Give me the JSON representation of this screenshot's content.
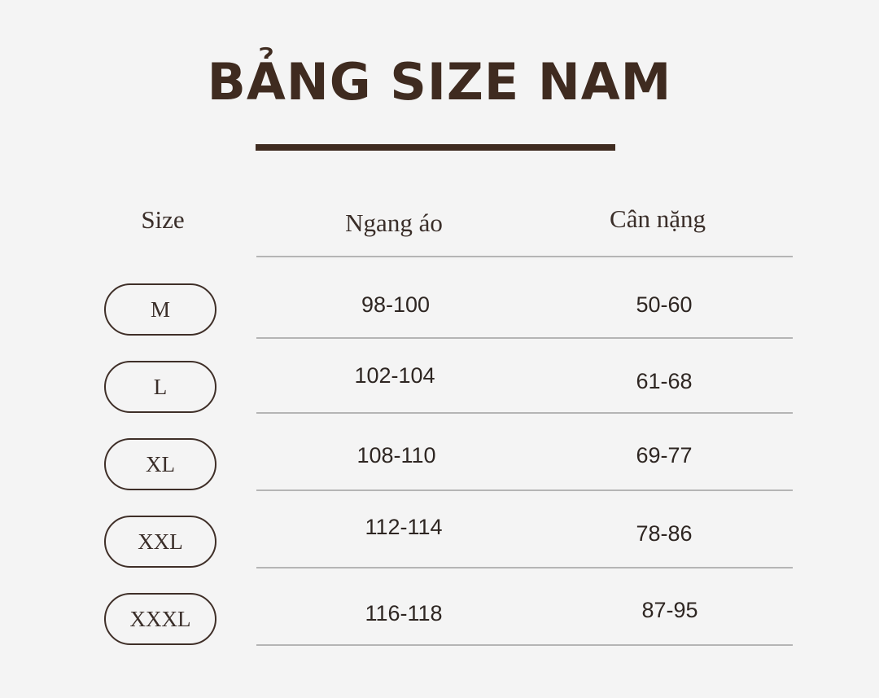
{
  "title": "BẢNG SIZE NAM",
  "headers": {
    "size": "Size",
    "chest": "Ngang áo",
    "weight": "Cân nặng"
  },
  "rows": [
    {
      "size": "M",
      "chest": "98-100",
      "weight": "50-60"
    },
    {
      "size": "L",
      "chest": "102-104",
      "weight": "61-68"
    },
    {
      "size": "XL",
      "chest": "108-110",
      "weight": "69-77"
    },
    {
      "size": "XXL",
      "chest": "112-114",
      "weight": "78-86"
    },
    {
      "size": "XXXL",
      "chest": "116-118",
      "weight": "87-95"
    }
  ],
  "colors": {
    "title": "#3f2b20",
    "background": "#f4f4f4",
    "divider": "#b5b5b5"
  }
}
